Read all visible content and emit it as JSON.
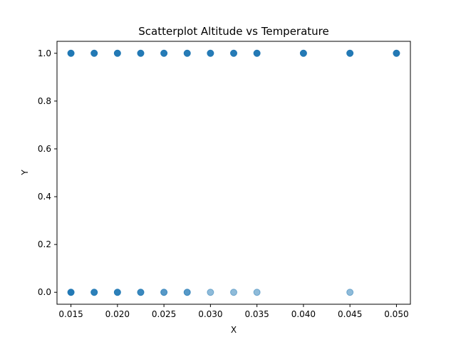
{
  "chart_data": {
    "type": "scatter",
    "title": "Scatterplot Altitude vs Temperature",
    "xlabel": "X",
    "ylabel": "Y",
    "xlim": [
      0.0135,
      0.0515
    ],
    "ylim": [
      -0.05,
      1.05
    ],
    "xticks": [
      "0.015",
      "0.020",
      "0.025",
      "0.030",
      "0.035",
      "0.040",
      "0.045",
      "0.050"
    ],
    "yticks": [
      "0.0",
      "0.2",
      "0.4",
      "0.6",
      "0.8",
      "1.0"
    ],
    "grid": false,
    "marker_color": "#1f77b4",
    "series": [
      {
        "points": [
          [
            0.015,
            1.0
          ],
          [
            0.0175,
            1.0
          ],
          [
            0.02,
            1.0
          ],
          [
            0.0225,
            1.0
          ],
          [
            0.025,
            1.0
          ],
          [
            0.0275,
            1.0
          ],
          [
            0.03,
            1.0
          ],
          [
            0.0325,
            1.0
          ],
          [
            0.035,
            1.0
          ],
          [
            0.04,
            1.0
          ],
          [
            0.045,
            1.0
          ],
          [
            0.05,
            1.0
          ],
          [
            0.015,
            0.0
          ],
          [
            0.0175,
            0.0
          ],
          [
            0.02,
            0.0
          ],
          [
            0.0225,
            0.0
          ],
          [
            0.025,
            0.0
          ],
          [
            0.0275,
            0.0
          ],
          [
            0.03,
            0.0
          ],
          [
            0.0325,
            0.0
          ],
          [
            0.035,
            0.0
          ],
          [
            0.045,
            0.0
          ]
        ],
        "density": [
          8,
          6,
          6,
          6,
          5,
          5,
          5,
          5,
          6,
          6,
          6,
          6,
          6,
          4,
          4,
          3,
          2,
          2,
          1,
          1,
          1,
          1
        ]
      }
    ]
  }
}
